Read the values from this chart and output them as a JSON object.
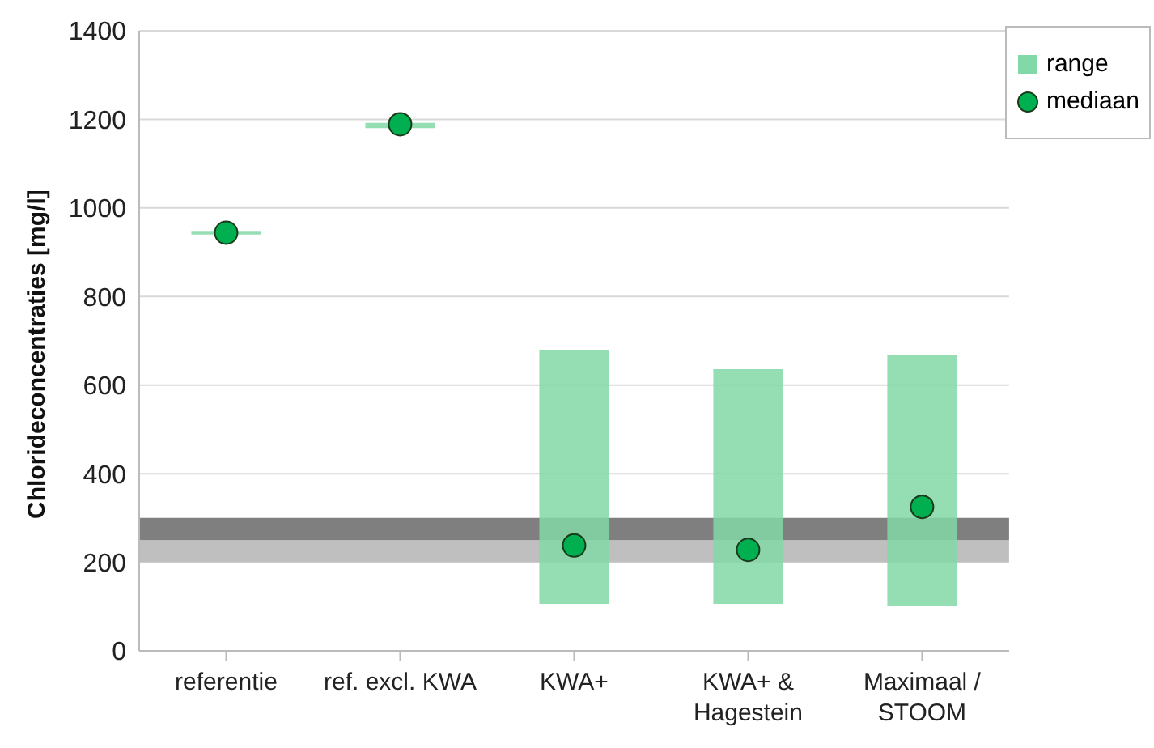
{
  "chart_data": {
    "type": "bar",
    "ylabel": "Chlorideconcentraties [mg/l]",
    "categories": [
      "referentie",
      "ref. excl. KWA",
      "KWA+",
      "KWA+ & Hagestein",
      "Maximaal / STOOM"
    ],
    "series": [
      {
        "name": "range",
        "color": "#82d8a6",
        "base": [
          940,
          1180,
          106,
          106,
          102
        ],
        "values": [
          8,
          12,
          574,
          530,
          567
        ]
      },
      {
        "name": "mediaan",
        "type": "scatter",
        "color": "#00b050",
        "x": [
          "referentie",
          "ref. excl. KWA",
          "KWA+",
          "KWA+ & Hagestein",
          "Maximaal / STOOM"
        ],
        "values": [
          944,
          1189,
          238,
          228,
          325
        ]
      }
    ],
    "bands": [
      {
        "axis": "y",
        "from": 200,
        "to": 250,
        "color": "#bfbfbf"
      },
      {
        "axis": "y",
        "from": 250,
        "to": 300,
        "color": "#7f7f7f"
      }
    ],
    "ylim": [
      0,
      1400
    ],
    "yticks": [
      0,
      200,
      400,
      600,
      800,
      1000,
      1200,
      1400
    ],
    "grid": "y",
    "legend": "top right",
    "marker": "circle"
  }
}
